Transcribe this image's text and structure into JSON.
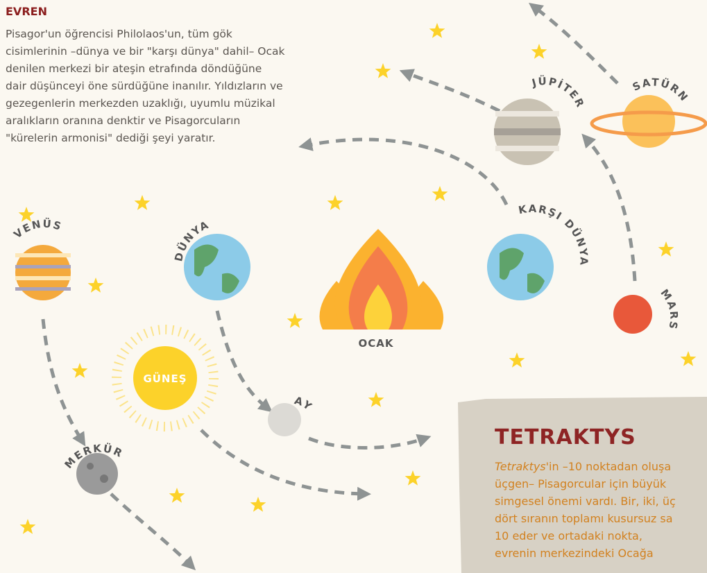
{
  "intro": {
    "title": "EVREN",
    "lines": [
      "Pisagor'un öğrencisi Philolaos'un, tüm gök",
      "cisimlerinin –dünya ve bir \"karşı dünya\" dahil– Ocak",
      "denilen merkezi bir ateşin etrafında döndüğüne",
      "dair düşünceyi öne sürdüğüne inanılır. Yıldızların ve",
      "gezegenlerin merkezden uzaklığı, uyumlu müzikal",
      "aralıkların oranına denktir ve Pisagorcuların",
      "\"kürelerin armonisi\" dediği şeyi yaratır."
    ]
  },
  "labels": {
    "venus": "VENÜS",
    "dunya": "DÜNYA",
    "gunes": "GÜNEŞ",
    "ay": "AY",
    "merkur": "MERKÜR",
    "jupiter": "JÜPİTER",
    "saturn": "SATÜRN",
    "karsi_dunya": "KARŞI DÜNYA",
    "mars": "MARS",
    "ocak": "OCAK"
  },
  "tetraktys": {
    "title": "TETRAKTYS",
    "first": {
      "term": "Tetraktys",
      "rest": "'in –10 noktadan oluşa"
    },
    "lines": [
      "üçgen– Pisagorcular için büyük",
      "simgesel önemi vardı. Bir, iki, üç",
      "dört sıranın toplamı kusursuz sa",
      "10 eder ve ortadaki nokta,",
      "evrenin merkezindeki Ocağa"
    ]
  }
}
